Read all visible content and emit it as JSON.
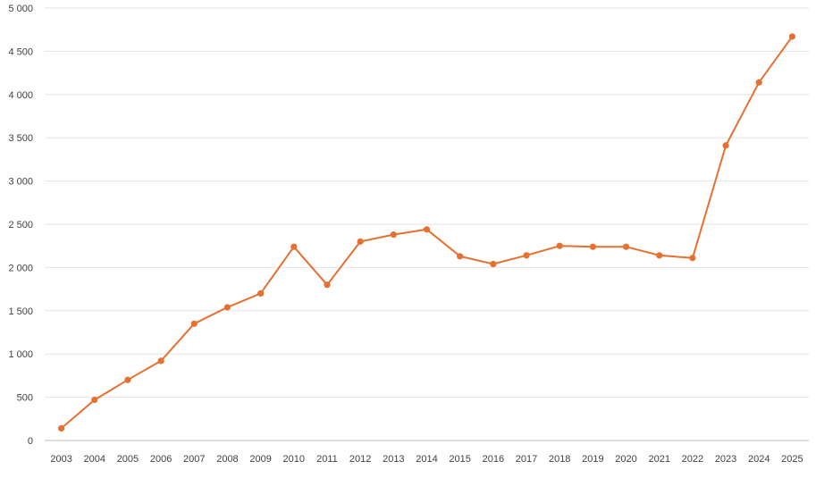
{
  "chart_data": {
    "type": "line",
    "title": "",
    "xlabel": "",
    "ylabel": "",
    "x": [
      "2003",
      "2004",
      "2005",
      "2006",
      "2007",
      "2008",
      "2009",
      "2010",
      "2011",
      "2012",
      "2013",
      "2014",
      "2015",
      "2016",
      "2017",
      "2018",
      "2019",
      "2020",
      "2021",
      "2022",
      "2023",
      "2024",
      "2025"
    ],
    "series": [
      {
        "values": [
          140,
          470,
          700,
          920,
          1350,
          1540,
          1700,
          2240,
          1800,
          2300,
          2380,
          2440,
          2130,
          2040,
          2140,
          2250,
          2240,
          2240,
          2140,
          2110,
          3410,
          4140,
          4670
        ],
        "color": "#E57030"
      }
    ],
    "ylim": [
      0,
      5000
    ],
    "yticks": [
      {
        "value": 0,
        "label": "0"
      },
      {
        "value": 500,
        "label": "500"
      },
      {
        "value": 1000,
        "label": "1 000"
      },
      {
        "value": 1500,
        "label": "1 500"
      },
      {
        "value": 2000,
        "label": "2 000"
      },
      {
        "value": 2500,
        "label": "2 500"
      },
      {
        "value": 3000,
        "label": "3 000"
      },
      {
        "value": 3500,
        "label": "3 500"
      },
      {
        "value": 4000,
        "label": "4 000"
      },
      {
        "value": 4500,
        "label": "4 500"
      },
      {
        "value": 5000,
        "label": "5 000"
      }
    ],
    "grid": true,
    "legend": "none"
  }
}
